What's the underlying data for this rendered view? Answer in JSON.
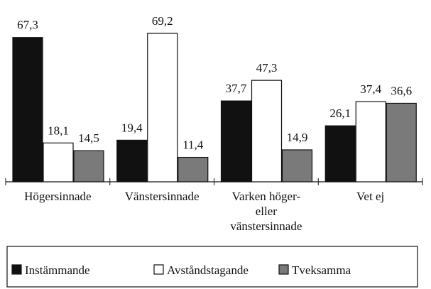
{
  "chart_data": {
    "type": "bar",
    "categories": [
      "Högersinnade",
      "Vänstersinnade",
      "Varken höger-\neller\nvänstersinnade",
      "Vet ej"
    ],
    "series": [
      {
        "name": "Instämmande",
        "color": "#111111",
        "values": [
          67.3,
          19.4,
          37.7,
          26.1
        ],
        "value_labels": [
          "67,3",
          "19,4",
          "37,7",
          "26,1"
        ]
      },
      {
        "name": "Avståndstagande",
        "color": "#ffffff",
        "values": [
          18.1,
          69.2,
          47.3,
          37.4
        ],
        "value_labels": [
          "18,1",
          "69,2",
          "47,3",
          "37,4"
        ]
      },
      {
        "name": "Tveksamma",
        "color": "#7a7a7a",
        "values": [
          14.5,
          11.4,
          14.9,
          36.6
        ],
        "value_labels": [
          "14,5",
          "11,4",
          "14,9",
          "36,6"
        ]
      }
    ],
    "legend": "bottom"
  }
}
